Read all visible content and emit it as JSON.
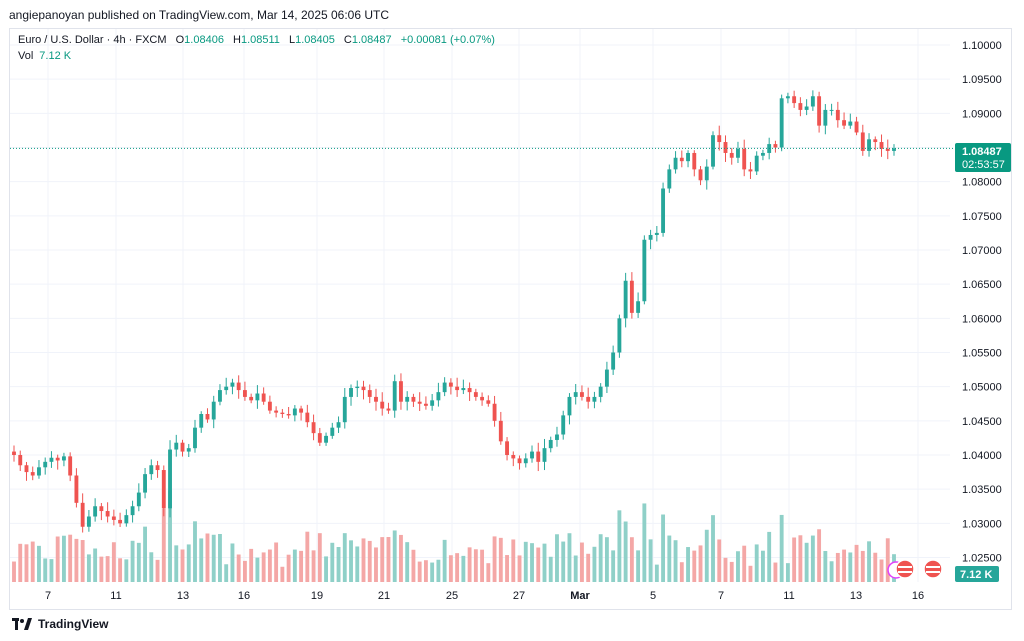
{
  "header": {
    "publisher": "angiepanoyan published on TradingView.com, Mar 14, 2025 06:06 UTC"
  },
  "legend": {
    "symbol": "Euro / U.S. Dollar · 4h · FXCM",
    "open_label": "O",
    "open": "1.08406",
    "high_label": "H",
    "high": "1.08511",
    "low_label": "L",
    "low": "1.08405",
    "close_label": "C",
    "close": "1.08487",
    "change": "+0.00081 (+0.07%)",
    "vol_label": "Vol",
    "vol": "7.12 K"
  },
  "price_badge": {
    "price": "1.08487",
    "countdown": "02:53:57"
  },
  "volume_badge": "7.12 K",
  "footer": {
    "brand": "TradingView"
  },
  "colors": {
    "up": "#26a69a",
    "down": "#ef5350",
    "vol_up": "#8fd0c8",
    "vol_down": "#f4a7a6",
    "current": "#089981"
  },
  "chart_data": {
    "type": "candlestick",
    "y_ticks": [
      "1.10000",
      "1.09500",
      "1.09000",
      "1.08500",
      "1.08000",
      "1.07500",
      "1.07000",
      "1.06500",
      "1.06000",
      "1.05500",
      "1.05000",
      "1.04500",
      "1.04000",
      "1.03500",
      "1.03000",
      "1.02500"
    ],
    "x_ticks": [
      "7",
      "11",
      "13",
      "16",
      "19",
      "21",
      "25",
      "27",
      "Mar",
      "5",
      "7",
      "11",
      "13",
      "16"
    ],
    "ylim": [
      1.0225,
      1.1025
    ],
    "current_price": 1.08487,
    "closes": [
      1.04,
      1.0385,
      1.0375,
      1.037,
      1.0382,
      1.039,
      1.0396,
      1.0392,
      1.0398,
      1.037,
      1.033,
      1.0295,
      1.031,
      1.0325,
      1.0318,
      1.031,
      1.0305,
      1.03,
      1.0312,
      1.0325,
      1.0345,
      1.0372,
      1.0385,
      1.0378,
      1.0322,
      1.0408,
      1.0418,
      1.0405,
      1.041,
      1.044,
      1.046,
      1.0452,
      1.0478,
      1.0495,
      1.05,
      1.0506,
      1.0495,
      1.0485,
      1.048,
      1.049,
      1.0478,
      1.0465,
      1.0462,
      1.046,
      1.0458,
      1.0468,
      1.0462,
      1.0448,
      1.0432,
      1.0418,
      1.0428,
      1.044,
      1.0448,
      1.0485,
      1.0498,
      1.05,
      1.0495,
      1.0485,
      1.0478,
      1.0468,
      1.0465,
      1.0508,
      1.0478,
      1.0485,
      1.0478,
      1.0475,
      1.0472,
      1.048,
      1.0492,
      1.0506,
      1.05,
      1.0495,
      1.0498,
      1.0492,
      1.0485,
      1.048,
      1.0475,
      1.045,
      1.042,
      1.04,
      1.0395,
      1.0388,
      1.0395,
      1.0405,
      1.039,
      1.041,
      1.0422,
      1.043,
      1.0458,
      1.0485,
      1.0492,
      1.0485,
      1.0478,
      1.0485,
      1.05,
      1.0525,
      1.055,
      1.06,
      1.0655,
      1.0608,
      1.0625,
      1.0715,
      1.0722,
      1.0725,
      1.079,
      1.0818,
      1.0835,
      1.083,
      1.0842,
      1.0818,
      1.0802,
      1.0822,
      1.0868,
      1.0858,
      1.0842,
      1.0835,
      1.0848,
      1.0818,
      1.0815,
      1.0838,
      1.0842,
      1.0855,
      1.085,
      1.0922,
      1.0925,
      1.0915,
      1.0905,
      1.091,
      1.0925,
      1.0882,
      1.0905,
      1.0905,
      1.089,
      1.0882,
      1.0888,
      1.0872,
      1.0845,
      1.0862,
      1.0858,
      1.0848,
      1.0845,
      1.08487
    ]
  }
}
